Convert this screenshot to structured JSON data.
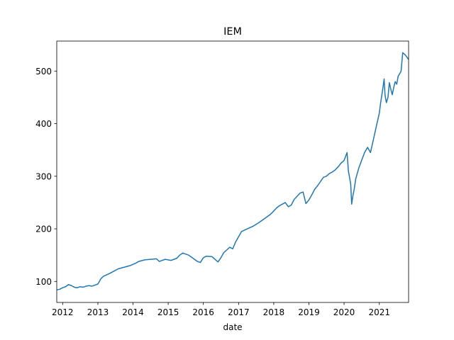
{
  "chart_data": {
    "type": "line",
    "title": "IEM",
    "xlabel": "date",
    "ylabel": "",
    "xlim": [
      "2011-11-01",
      "2021-11-01"
    ],
    "ylim": [
      60,
      557
    ],
    "grid": false,
    "legend": "none",
    "x_ticks": [
      "2012-01-01",
      "2013-01-01",
      "2014-01-01",
      "2015-01-01",
      "2016-01-01",
      "2017-01-01",
      "2018-01-01",
      "2019-01-01",
      "2020-01-01",
      "2021-01-01"
    ],
    "x_tick_labels": [
      "2012",
      "2013",
      "2014",
      "2015",
      "2016",
      "2017",
      "2018",
      "2019",
      "2020",
      "2021"
    ],
    "y_ticks": [
      100,
      200,
      300,
      400,
      500
    ],
    "y_tick_labels": [
      "100",
      "200",
      "300",
      "400",
      "500"
    ],
    "series": [
      {
        "color": "#1f77b4",
        "x": [
          "2011-11-01",
          "2011-12-01",
          "2012-01-01",
          "2012-02-01",
          "2012-03-01",
          "2012-04-01",
          "2012-05-01",
          "2012-06-01",
          "2012-07-01",
          "2012-08-01",
          "2012-09-01",
          "2012-10-01",
          "2012-11-01",
          "2013-01-01",
          "2013-02-01",
          "2013-03-01",
          "2013-05-01",
          "2013-06-01",
          "2013-08-01",
          "2013-10-01",
          "2013-12-01",
          "2014-02-01",
          "2014-03-01",
          "2014-05-01",
          "2014-07-01",
          "2014-09-01",
          "2014-10-01",
          "2014-12-01",
          "2015-02-01",
          "2015-03-01",
          "2015-04-01",
          "2015-05-01",
          "2015-06-01",
          "2015-07-01",
          "2015-08-01",
          "2015-09-01",
          "2015-10-01",
          "2015-11-01",
          "2015-12-01",
          "2016-01-01",
          "2016-02-01",
          "2016-04-01",
          "2016-06-01",
          "2016-07-01",
          "2016-08-01",
          "2016-09-01",
          "2016-10-01",
          "2016-11-01",
          "2016-12-01",
          "2017-02-01",
          "2017-04-01",
          "2017-06-01",
          "2017-08-01",
          "2017-10-01",
          "2017-12-01",
          "2018-01-01",
          "2018-02-01",
          "2018-03-01",
          "2018-04-01",
          "2018-05-01",
          "2018-06-01",
          "2018-07-01",
          "2018-08-01",
          "2018-09-01",
          "2018-10-01",
          "2018-11-01",
          "2018-12-01",
          "2019-01-01",
          "2019-02-01",
          "2019-03-01",
          "2019-04-01",
          "2019-05-01",
          "2019-06-01",
          "2019-07-01",
          "2019-08-01",
          "2019-09-01",
          "2019-10-01",
          "2019-11-01",
          "2019-12-01",
          "2020-01-01",
          "2020-02-01",
          "2020-02-15",
          "2020-03-10",
          "2020-03-20",
          "2020-04-01",
          "2020-04-15",
          "2020-05-01",
          "2020-06-01",
          "2020-07-01",
          "2020-08-01",
          "2020-09-01",
          "2020-10-01",
          "2020-11-01",
          "2020-12-01",
          "2021-01-01",
          "2021-01-15",
          "2021-02-01",
          "2021-02-20",
          "2021-03-01",
          "2021-03-15",
          "2021-04-01",
          "2021-04-15",
          "2021-05-01",
          "2021-05-15",
          "2021-06-01",
          "2021-06-15",
          "2021-07-01",
          "2021-07-15",
          "2021-08-01",
          "2021-08-15",
          "2021-09-01",
          "2021-10-01",
          "2021-11-01"
        ],
        "y": [
          84,
          85,
          88,
          90,
          94,
          92,
          89,
          88,
          90,
          89,
          91,
          92,
          91,
          95,
          105,
          110,
          115,
          118,
          124,
          127,
          130,
          135,
          138,
          141,
          142,
          143,
          138,
          142,
          140,
          142,
          144,
          150,
          154,
          152,
          150,
          146,
          142,
          138,
          136,
          145,
          148,
          147,
          137,
          145,
          155,
          160,
          165,
          162,
          175,
          195,
          200,
          205,
          212,
          220,
          228,
          234,
          240,
          244,
          247,
          250,
          242,
          245,
          256,
          262,
          268,
          270,
          248,
          255,
          265,
          275,
          282,
          290,
          298,
          300,
          305,
          308,
          312,
          318,
          325,
          330,
          345,
          310,
          285,
          247,
          262,
          275,
          295,
          315,
          330,
          345,
          355,
          345,
          370,
          395,
          420,
          440,
          460,
          485,
          455,
          440,
          450,
          478,
          465,
          455,
          470,
          480,
          475,
          490,
          495,
          500,
          535,
          530,
          522
        ]
      }
    ]
  }
}
